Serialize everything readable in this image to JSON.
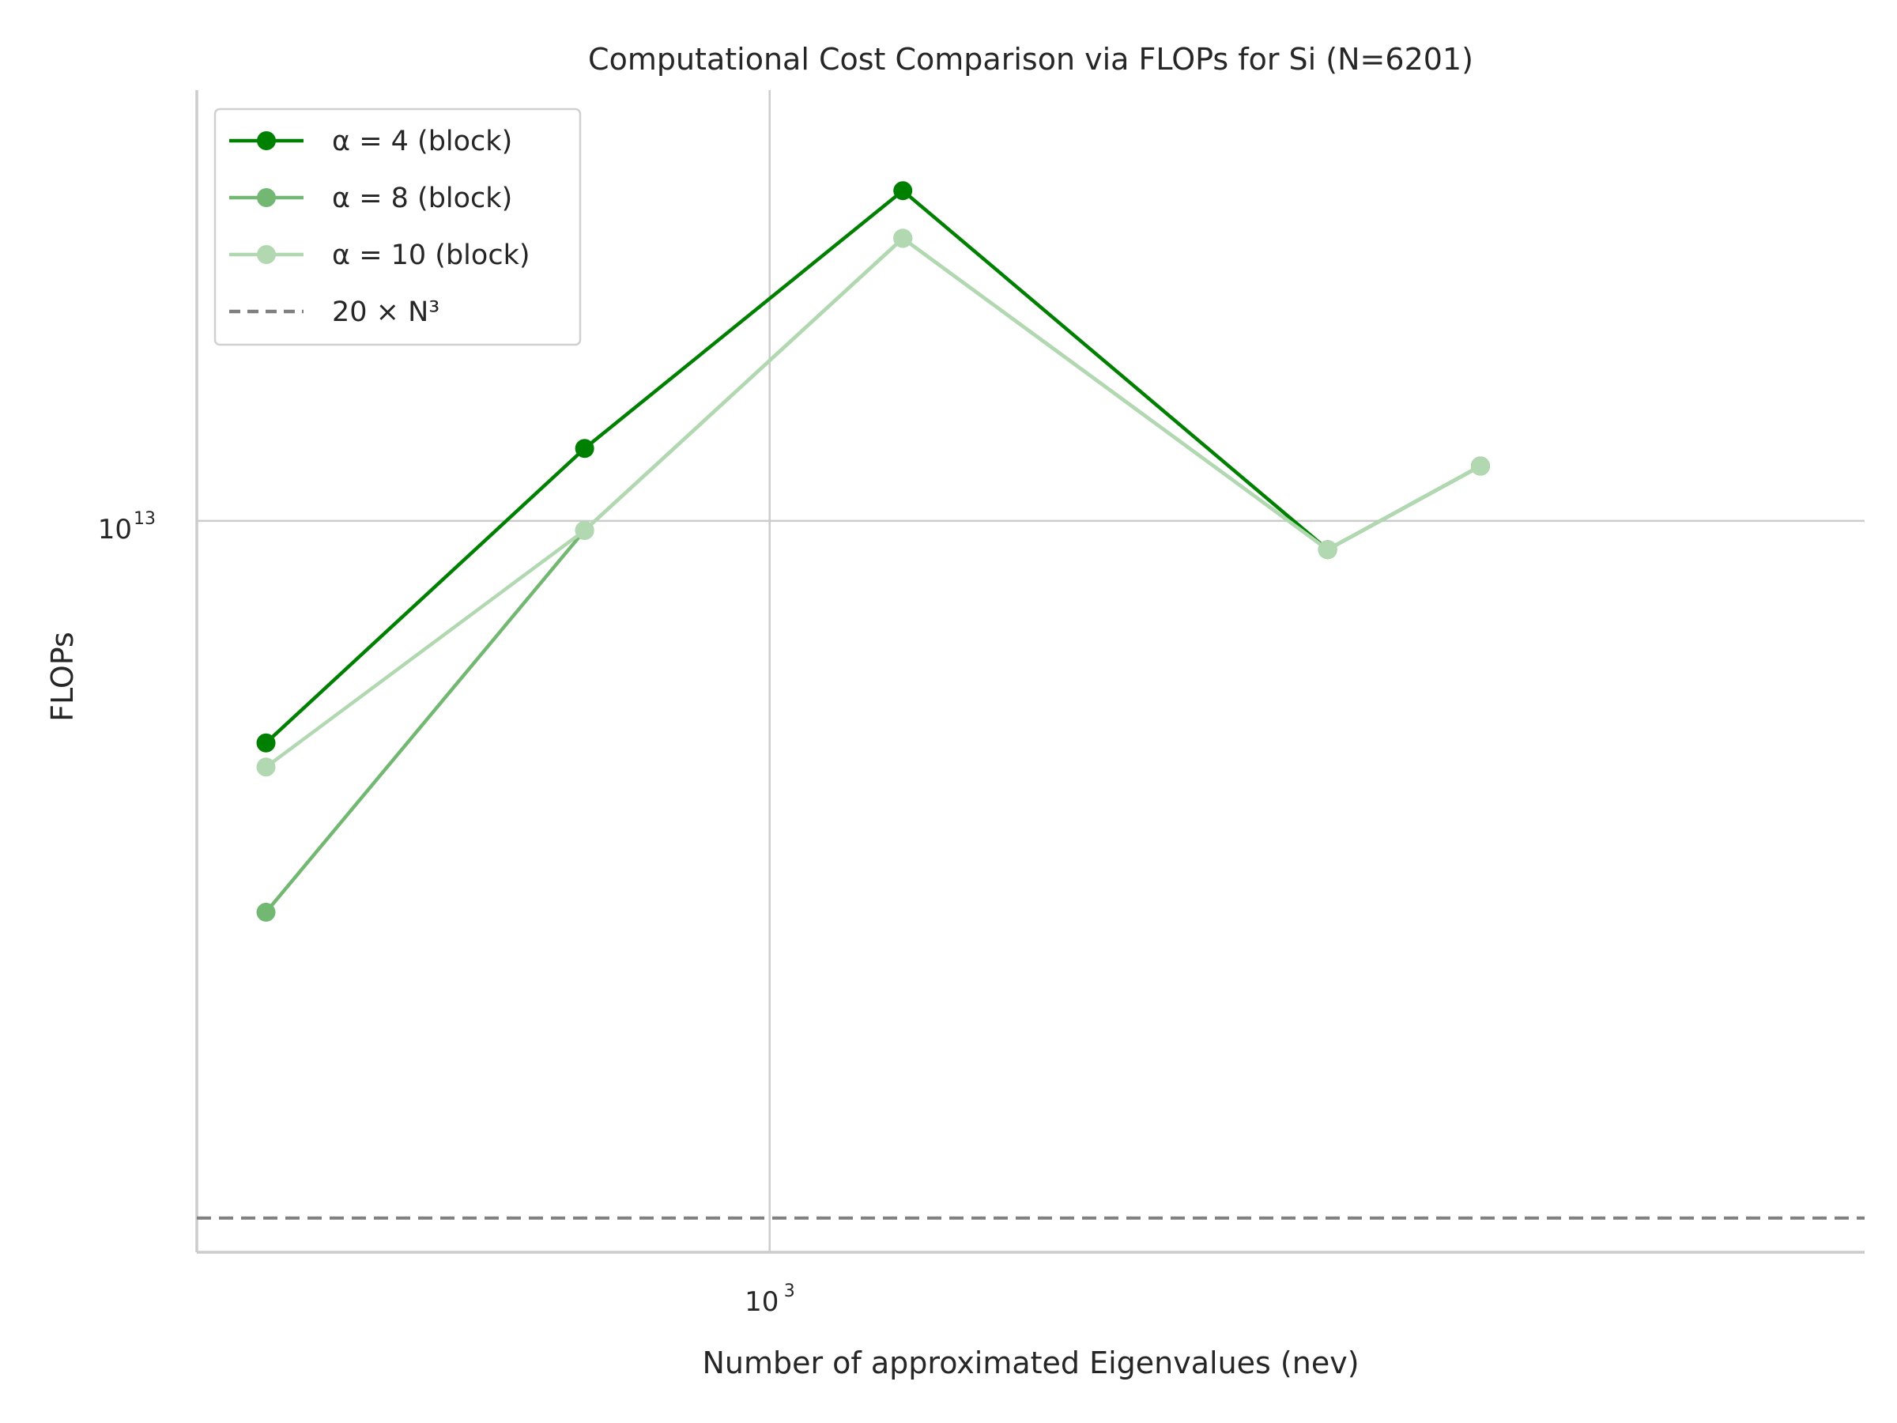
{
  "chart_data": {
    "type": "line",
    "title": "Computational Cost Comparison via FLOPs for Si (N=6201)",
    "xlabel": "Number of approximated Eigenvalues (nev)",
    "ylabel": "FLOPs",
    "xscale": "log",
    "yscale": "log",
    "xlim": [
      303,
      9800
    ],
    "ylim": [
      4600000000000.0,
      15800000000000.0
    ],
    "x": [
      350,
      680,
      1320,
      3200,
      4400
    ],
    "series": [
      {
        "name": "α = 4 (block)",
        "legend_label": "α = 4 (block)",
        "color": "#008000",
        "marker": "circle",
        "values": [
          7900000000000.0,
          10800000000000.0,
          14200000000000.0,
          9700000000000.0,
          10600000000000.0
        ]
      },
      {
        "name": "α = 8 (block)",
        "legend_label": "α = 8 (block)",
        "color": "#72b872",
        "marker": "circle",
        "values": [
          6600000000000.0,
          9900000000000.0,
          13500000000000.0,
          9700000000000.0,
          10600000000000.0
        ]
      },
      {
        "name": "α = 10 (block)",
        "legend_label": "α = 10 (block)",
        "color": "#b2d8b2",
        "marker": "circle",
        "values": [
          7700000000000.0,
          9900000000000.0,
          13500000000000.0,
          9700000000000.0,
          10600000000000.0
        ]
      }
    ],
    "reference_line": {
      "name": "20 × N³",
      "legend_label": "20 × N³",
      "value": 4770000000000.0,
      "color": "#808080",
      "style": "dashed"
    },
    "x_ticks": [
      {
        "value": 1000,
        "base": "10",
        "exp": "3"
      }
    ],
    "y_ticks": [
      {
        "value": 10000000000000.0,
        "base": "10",
        "exp": "13"
      }
    ],
    "grid": true,
    "legend_position": "upper-left"
  }
}
